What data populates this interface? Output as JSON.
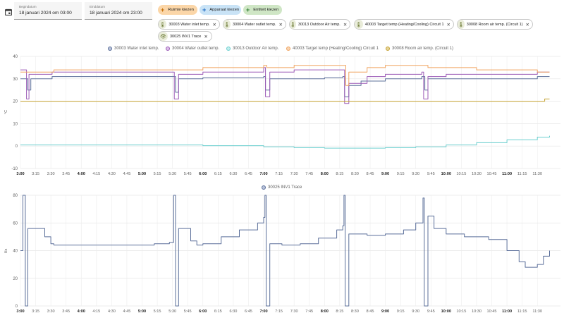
{
  "header": {
    "calendar_icon": "calendar-icon",
    "start": {
      "label": "Begindatum",
      "value": "18 januari 2024 om 03:00"
    },
    "end": {
      "label": "Einddatum",
      "value": "18 januari 2024 om 23:00"
    }
  },
  "targets": {
    "area_label": "Ruimte kiezen",
    "device_label": "Apparaat kiezen",
    "entity_label": "Entiteit kiezen",
    "colors": {
      "area": "#fbd6a8",
      "device": "#c9e3f6",
      "entity": "#cfe6c5"
    }
  },
  "chips": [
    {
      "label": "30003 Water inlet temp.",
      "icon": "thermometer-icon"
    },
    {
      "label": "30004 Water outlet temp.",
      "icon": "thermometer-icon"
    },
    {
      "label": "30013 Outdoor Air temp.",
      "icon": "thermometer-icon"
    },
    {
      "label": "40003 Target temp (Heating/Cooling) Circuit 1",
      "icon": "thermometer-icon"
    },
    {
      "label": "30008 Room air temp. (Circuit 1)",
      "icon": "thermometer-icon"
    },
    {
      "label": "30025 INV1 Trace",
      "icon": "eye-icon"
    }
  ],
  "chart_data": [
    {
      "type": "line",
      "unit": "°C",
      "ylim": [
        -10,
        40
      ],
      "yticks": [
        -10,
        0,
        10,
        20,
        30,
        40
      ],
      "legend": [
        {
          "name": "30003 Water inlet temp.",
          "color": "#5b6f9a"
        },
        {
          "name": "30004 Water outlet temp.",
          "color": "#9b59b6"
        },
        {
          "name": "30013 Outdoor Air temp.",
          "color": "#6ccfcf"
        },
        {
          "name": "40003 Target temp (Heating/Cooling) Circuit 1",
          "color": "#f0a35e"
        },
        {
          "name": "30008 Room air temp. (Circuit 1)",
          "color": "#c5a233"
        }
      ],
      "series": [
        {
          "name": "30003 Water inlet temp.",
          "color": "#5b6f9a",
          "points": [
            [
              3.0,
              30
            ],
            [
              3.1,
              30
            ],
            [
              3.12,
              25
            ],
            [
              3.17,
              30
            ],
            [
              3.5,
              30
            ],
            [
              3.52,
              31
            ],
            [
              5.5,
              31
            ],
            [
              5.55,
              24
            ],
            [
              5.6,
              30
            ],
            [
              6,
              30.5
            ],
            [
              7.0,
              31
            ],
            [
              7.03,
              25
            ],
            [
              7.1,
              30
            ],
            [
              8.0,
              30.5
            ],
            [
              8.3,
              31
            ],
            [
              8.33,
              22
            ],
            [
              8.4,
              27
            ],
            [
              8.6,
              29
            ],
            [
              9.0,
              30
            ],
            [
              9.6,
              31
            ],
            [
              9.65,
              25
            ],
            [
              9.7,
              30
            ],
            [
              10,
              30
            ],
            [
              11.5,
              31
            ],
            [
              11.7,
              31
            ]
          ]
        },
        {
          "name": "30004 Water outlet temp.",
          "color": "#9b59b6",
          "points": [
            [
              3.0,
              34
            ],
            [
              3.08,
              34
            ],
            [
              3.1,
              21
            ],
            [
              3.14,
              32
            ],
            [
              3.5,
              32
            ],
            [
              3.52,
              33
            ],
            [
              5.5,
              33
            ],
            [
              5.53,
              21
            ],
            [
              5.6,
              32
            ],
            [
              6,
              33
            ],
            [
              7.0,
              35
            ],
            [
              7.03,
              22
            ],
            [
              7.1,
              33
            ],
            [
              7.5,
              34
            ],
            [
              8.3,
              34
            ],
            [
              8.33,
              19
            ],
            [
              8.4,
              28
            ],
            [
              8.7,
              31
            ],
            [
              9.0,
              32
            ],
            [
              9.6,
              33
            ],
            [
              9.63,
              21
            ],
            [
              9.7,
              31
            ],
            [
              10,
              32
            ],
            [
              11.5,
              33
            ],
            [
              11.7,
              33
            ]
          ]
        },
        {
          "name": "30013 Outdoor Air temp.",
          "color": "#6ccfcf",
          "points": [
            [
              3.0,
              0.5
            ],
            [
              4.0,
              0.5
            ],
            [
              5.0,
              0.5
            ],
            [
              6.0,
              0.2
            ],
            [
              7.0,
              -0.3
            ],
            [
              7.5,
              -0.7
            ],
            [
              8.0,
              -0.9
            ],
            [
              8.5,
              -0.9
            ],
            [
              9.0,
              -0.7
            ],
            [
              9.5,
              -0.3
            ],
            [
              10.0,
              0.5
            ],
            [
              10.5,
              1.5
            ],
            [
              11.0,
              2.8
            ],
            [
              11.5,
              4.0
            ],
            [
              11.7,
              4.6
            ]
          ]
        },
        {
          "name": "40003 Target temp (Heating/Cooling) Circuit 1",
          "color": "#f0a35e",
          "points": [
            [
              3.0,
              33
            ],
            [
              3.5,
              33
            ],
            [
              3.55,
              34
            ],
            [
              5.5,
              34
            ],
            [
              5.6,
              34
            ],
            [
              6.0,
              35
            ],
            [
              7.0,
              36
            ],
            [
              7.05,
              35
            ],
            [
              7.5,
              36
            ],
            [
              8.3,
              36
            ],
            [
              8.35,
              27
            ],
            [
              8.4,
              33
            ],
            [
              8.7,
              35
            ],
            [
              9.0,
              36
            ],
            [
              9.6,
              36
            ],
            [
              9.7,
              35
            ],
            [
              10.5,
              34
            ],
            [
              11.5,
              33
            ],
            [
              11.7,
              33
            ]
          ]
        },
        {
          "name": "30008 Room air temp. (Circuit 1)",
          "color": "#c5a233",
          "points": [
            [
              3.0,
              20
            ],
            [
              5.0,
              20
            ],
            [
              7.0,
              20
            ],
            [
              9.0,
              20
            ],
            [
              11.0,
              20
            ],
            [
              11.6,
              20
            ],
            [
              11.62,
              21
            ],
            [
              11.7,
              21
            ]
          ]
        }
      ]
    },
    {
      "type": "line",
      "unit": "Hz",
      "ylim": [
        0,
        80
      ],
      "yticks": [
        0,
        20,
        40,
        60,
        80
      ],
      "legend": [
        {
          "name": "30025 INV1 Trace",
          "color": "#5b6f9a"
        }
      ],
      "series": [
        {
          "name": "30025 INV1 Trace",
          "color": "#5b6f9a",
          "points": [
            [
              3.0,
              40
            ],
            [
              3.04,
              80
            ],
            [
              3.06,
              80
            ],
            [
              3.08,
              0
            ],
            [
              3.1,
              0
            ],
            [
              3.12,
              56
            ],
            [
              3.3,
              56
            ],
            [
              3.4,
              50
            ],
            [
              3.5,
              45
            ],
            [
              3.55,
              44
            ],
            [
              4.0,
              44
            ],
            [
              4.5,
              44
            ],
            [
              5.0,
              44
            ],
            [
              5.2,
              45
            ],
            [
              5.45,
              46
            ],
            [
              5.5,
              46
            ],
            [
              5.52,
              80
            ],
            [
              5.55,
              0
            ],
            [
              5.58,
              0
            ],
            [
              5.6,
              56
            ],
            [
              5.7,
              56
            ],
            [
              5.8,
              47
            ],
            [
              5.9,
              44
            ],
            [
              6.0,
              45
            ],
            [
              6.3,
              50
            ],
            [
              6.6,
              55
            ],
            [
              6.9,
              60
            ],
            [
              7.0,
              64
            ],
            [
              7.02,
              80
            ],
            [
              7.04,
              0
            ],
            [
              7.06,
              0
            ],
            [
              7.1,
              45
            ],
            [
              7.3,
              44
            ],
            [
              7.6,
              45
            ],
            [
              7.9,
              49
            ],
            [
              8.2,
              55
            ],
            [
              8.3,
              58
            ],
            [
              8.32,
              80
            ],
            [
              8.34,
              0
            ],
            [
              8.36,
              0
            ],
            [
              8.4,
              52
            ],
            [
              8.7,
              51
            ],
            [
              9.0,
              52
            ],
            [
              9.3,
              55
            ],
            [
              9.5,
              60
            ],
            [
              9.62,
              78
            ],
            [
              9.64,
              0
            ],
            [
              9.66,
              0
            ],
            [
              9.7,
              65
            ],
            [
              9.8,
              56
            ],
            [
              10.0,
              52
            ],
            [
              10.3,
              50
            ],
            [
              10.7,
              48
            ],
            [
              11.0,
              40
            ],
            [
              11.2,
              32
            ],
            [
              11.3,
              28
            ],
            [
              11.5,
              30
            ],
            [
              11.6,
              36
            ],
            [
              11.7,
              40
            ]
          ]
        }
      ]
    }
  ],
  "xaxis": {
    "ticks": [
      "3:00",
      "3:15",
      "3:30",
      "3:45",
      "4:00",
      "4:15",
      "4:30",
      "4:45",
      "5:00",
      "5:15",
      "5:30",
      "5:45",
      "6:00",
      "6:15",
      "6:30",
      "6:45",
      "7:00",
      "7:15",
      "7:30",
      "7:45",
      "8:00",
      "8:15",
      "8:30",
      "8:45",
      "9:00",
      "9:15",
      "9:30",
      "9:45",
      "10:00",
      "10:15",
      "10:30",
      "10:45",
      "11:00",
      "11:15",
      "11:30"
    ],
    "bold": [
      "3:00",
      "4:00",
      "5:00",
      "6:00",
      "7:00",
      "8:00",
      "9:00",
      "10:00",
      "11:00"
    ]
  }
}
